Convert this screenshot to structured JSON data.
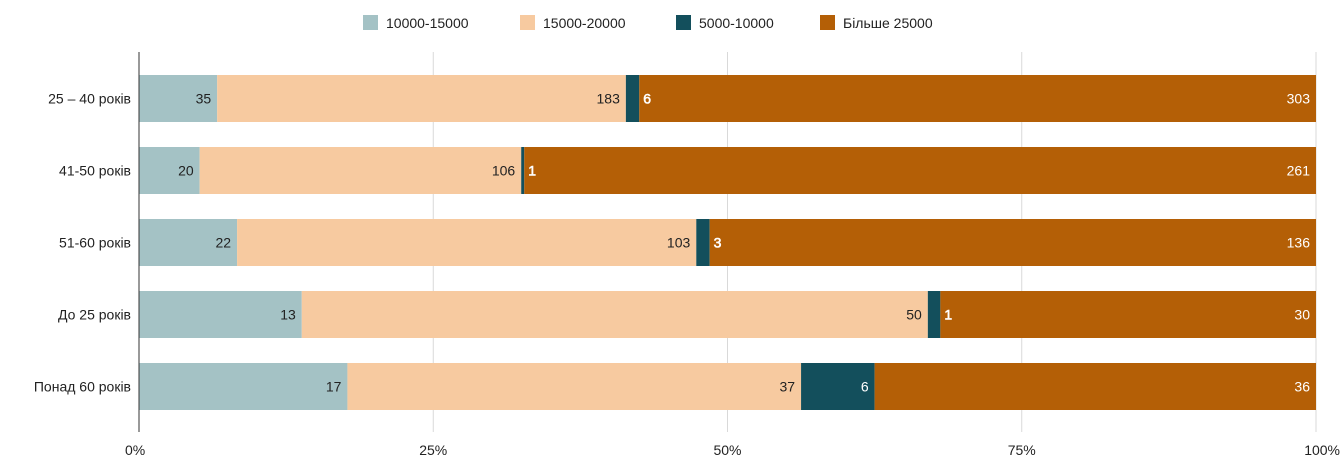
{
  "chart_data": {
    "type": "bar",
    "orientation": "horizontal",
    "stacked": "percent",
    "categories": [
      "25 – 40 років",
      "41-50 років",
      "51-60 років",
      "До 25 років",
      "Понад 60 років"
    ],
    "series": [
      {
        "name": "10000-15000",
        "color": "#a4c2c5",
        "label_color": "#222222",
        "values": [
          35,
          20,
          22,
          13,
          17
        ]
      },
      {
        "name": "15000-20000",
        "color": "#f7caa0",
        "label_color": "#222222",
        "values": [
          183,
          106,
          103,
          50,
          37
        ]
      },
      {
        "name": "5000-10000",
        "color": "#134f5c",
        "label_color": "#ffffff",
        "values": [
          6,
          1,
          3,
          1,
          6
        ]
      },
      {
        "name": "Більше 25000",
        "color": "#b45f06",
        "label_color": "#ffffff",
        "values": [
          303,
          261,
          136,
          30,
          36
        ]
      }
    ],
    "x_ticks": [
      "0%",
      "25%",
      "50%",
      "75%",
      "100%"
    ],
    "xlim": [
      0,
      100
    ],
    "grid": true,
    "legend": "top-center"
  }
}
